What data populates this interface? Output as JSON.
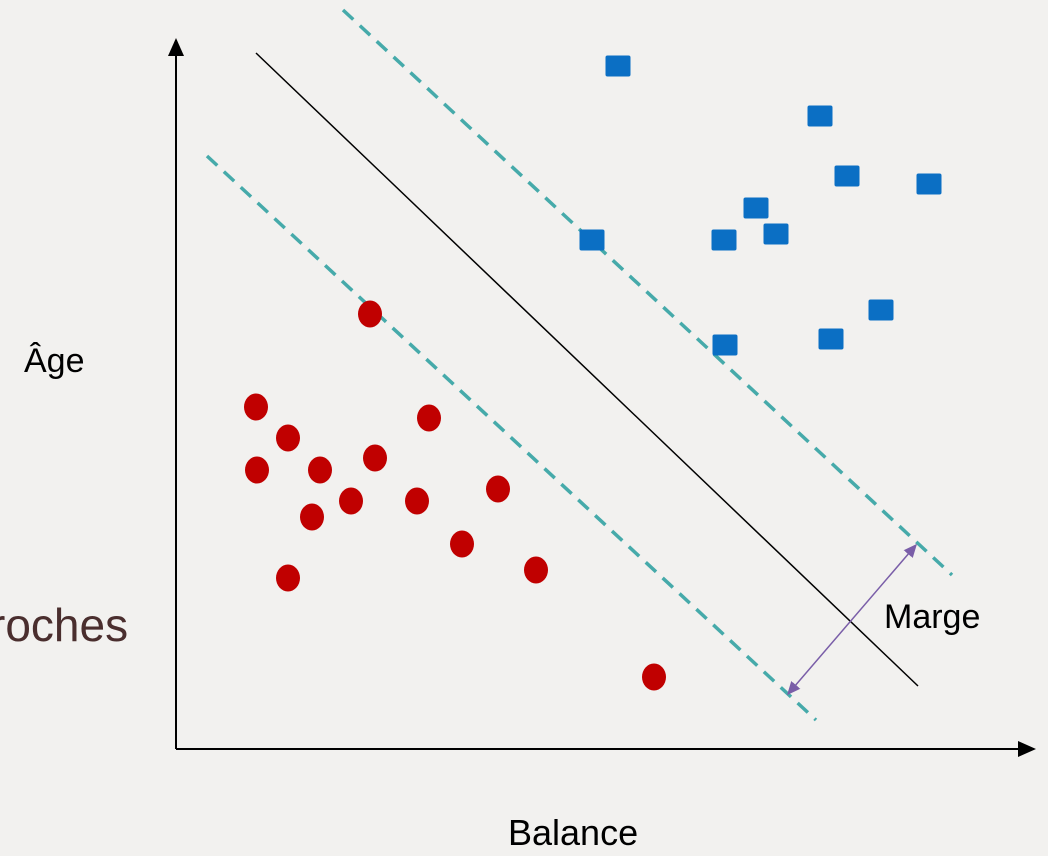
{
  "labels": {
    "y_axis": "Âge",
    "x_axis": "Balance",
    "margin": "Marge",
    "cut_text": "roches"
  },
  "colors": {
    "class_circle": "#c00000",
    "class_square": "#0b6fc4",
    "hyperplane": "#000000",
    "margin_lines": "#46aaaa",
    "margin_arrow": "#7a5ea8",
    "axes": "#000000"
  },
  "points": {
    "circles": [
      [
        370,
        314
      ],
      [
        256,
        407
      ],
      [
        429,
        418
      ],
      [
        288,
        438
      ],
      [
        257,
        470
      ],
      [
        320,
        470
      ],
      [
        375,
        458
      ],
      [
        351,
        501
      ],
      [
        417,
        501
      ],
      [
        498,
        489
      ],
      [
        312,
        517
      ],
      [
        462,
        544
      ],
      [
        536,
        570
      ],
      [
        288,
        578
      ],
      [
        654,
        677
      ]
    ],
    "squares": [
      [
        618,
        66
      ],
      [
        820,
        116
      ],
      [
        847,
        176
      ],
      [
        929,
        184
      ],
      [
        756,
        208
      ],
      [
        776,
        234
      ],
      [
        724,
        240
      ],
      [
        592,
        240
      ],
      [
        881,
        310
      ],
      [
        831,
        339
      ],
      [
        725,
        345
      ]
    ]
  }
}
